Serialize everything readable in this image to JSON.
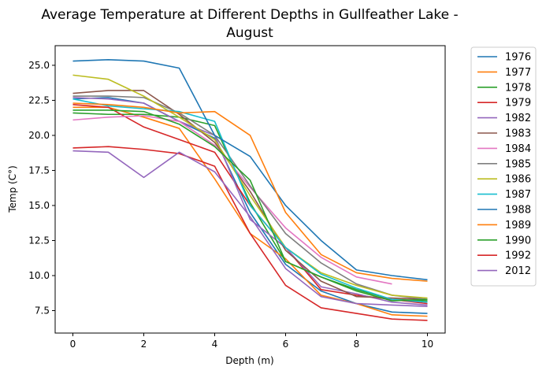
{
  "chart_data": {
    "type": "line",
    "title_lines": [
      "Average Temperature at Different Depths in Gullfeather Lake -",
      "August"
    ],
    "xlabel": "Depth (m)",
    "ylabel": "Temp (C°)",
    "xlim": [
      -0.5,
      10.5
    ],
    "ylim": [
      5.9,
      26.4
    ],
    "xticks": [
      0,
      2,
      4,
      6,
      8,
      10
    ],
    "yticks": [
      7.5,
      10.0,
      12.5,
      15.0,
      17.5,
      20.0,
      22.5,
      25.0
    ],
    "ytick_labels": [
      "7.5",
      "10.0",
      "12.5",
      "15.0",
      "17.5",
      "20.0",
      "22.5",
      "25.0"
    ],
    "grid": false,
    "legend_position": "outside-right",
    "series": [
      {
        "name": "1976",
        "color": "#1f77b4",
        "x": [
          0,
          1,
          2,
          3,
          4,
          5,
          6,
          7,
          8,
          9,
          10
        ],
        "values": [
          22.6,
          22.7,
          22.3,
          21.0,
          19.8,
          14.5,
          10.8,
          8.9,
          8.0,
          7.4,
          7.3
        ]
      },
      {
        "name": "1977",
        "color": "#ff7f0e",
        "x": [
          0,
          1,
          2,
          3,
          4,
          5,
          6,
          7,
          8,
          9,
          10
        ],
        "values": [
          22.0,
          22.0,
          21.3,
          20.5,
          16.9,
          13.0,
          11.2,
          8.6,
          8.0,
          7.2,
          7.1
        ]
      },
      {
        "name": "1978",
        "color": "#2ca02c",
        "x": [
          0,
          1,
          2,
          3,
          4,
          5,
          6,
          7,
          8,
          9,
          10
        ],
        "values": [
          21.6,
          21.5,
          21.5,
          21.3,
          20.7,
          15.2,
          11.0,
          9.9,
          9.0,
          8.3,
          8.2
        ]
      },
      {
        "name": "1979",
        "color": "#d62728",
        "x": [
          0,
          1,
          2,
          3,
          4,
          5,
          6,
          7,
          8,
          9,
          10
        ],
        "values": [
          22.2,
          22.0,
          20.6,
          19.7,
          18.8,
          15.0,
          12.0,
          9.0,
          8.6,
          8.3,
          8.0
        ]
      },
      {
        "name": "1982",
        "color": "#9467bd",
        "x": [
          0,
          1,
          2,
          3,
          4,
          5,
          6,
          7,
          8,
          9,
          10
        ],
        "values": [
          22.7,
          22.6,
          22.3,
          21.0,
          20.0,
          14.0,
          12.0,
          9.2,
          8.7,
          8.1,
          7.9
        ]
      },
      {
        "name": "1983",
        "color": "#8c564b",
        "x": [
          0,
          1,
          2,
          3,
          4,
          5,
          6,
          7,
          8,
          9,
          10
        ],
        "values": [
          23.0,
          23.2,
          23.2,
          21.5,
          19.5,
          16.0,
          11.8,
          9.6,
          8.5,
          8.4,
          8.3
        ]
      },
      {
        "name": "1984",
        "color": "#e377c2",
        "x": [
          0,
          1,
          2,
          3,
          4,
          5,
          6,
          7,
          8,
          9
        ],
        "values": [
          21.1,
          21.3,
          21.4,
          21.0,
          19.3,
          16.3,
          13.4,
          11.3,
          9.9,
          9.4
        ]
      },
      {
        "name": "1985",
        "color": "#7f7f7f",
        "x": [
          0,
          1,
          2,
          3,
          4,
          5,
          6,
          7,
          8,
          9,
          10
        ],
        "values": [
          22.8,
          22.8,
          22.7,
          21.6,
          20.0,
          16.4,
          13.0,
          10.9,
          9.4,
          8.6,
          8.3
        ]
      },
      {
        "name": "1986",
        "color": "#bcbd22",
        "x": [
          0,
          1,
          2,
          3,
          4,
          5,
          6,
          7,
          8,
          9,
          10
        ],
        "values": [
          24.3,
          24.0,
          22.8,
          21.3,
          19.7,
          15.7,
          12.0,
          10.2,
          9.3,
          8.6,
          8.4
        ]
      },
      {
        "name": "1987",
        "color": "#17becf",
        "x": [
          0,
          1,
          2,
          3,
          4,
          5,
          6,
          7,
          8,
          9,
          10
        ],
        "values": [
          22.6,
          22.1,
          21.9,
          21.7,
          21.0,
          15.0,
          12.0,
          10.1,
          9.1,
          8.3,
          8.1
        ]
      },
      {
        "name": "1988",
        "color": "#1f77b4",
        "x": [
          0,
          1,
          2,
          3,
          4,
          5,
          6,
          7,
          8,
          9,
          10
        ],
        "values": [
          25.3,
          25.4,
          25.3,
          24.8,
          20.0,
          18.5,
          15.0,
          12.5,
          10.4,
          10.0,
          9.7
        ]
      },
      {
        "name": "1989",
        "color": "#ff7f0e",
        "x": [
          0,
          1,
          2,
          3,
          4,
          5,
          6,
          7,
          8,
          9,
          10
        ],
        "values": [
          22.3,
          22.2,
          22.0,
          21.6,
          21.7,
          20.0,
          14.5,
          11.5,
          10.2,
          9.8,
          9.6
        ]
      },
      {
        "name": "1990",
        "color": "#2ca02c",
        "x": [
          0,
          1,
          2,
          3,
          4,
          5,
          6,
          7,
          8,
          9,
          10
        ],
        "values": [
          21.8,
          21.8,
          21.7,
          20.8,
          19.2,
          16.8,
          11.0,
          9.9,
          8.9,
          8.2,
          8.3
        ]
      },
      {
        "name": "1992",
        "color": "#d62728",
        "x": [
          0,
          1,
          2,
          3,
          4,
          5,
          6,
          7,
          8,
          9,
          10
        ],
        "values": [
          19.1,
          19.2,
          19.0,
          18.7,
          17.8,
          13.0,
          9.3,
          7.7,
          7.3,
          6.9,
          6.8
        ]
      },
      {
        "name": "2012",
        "color": "#9467bd",
        "x": [
          0,
          1,
          2,
          3,
          4,
          5,
          6,
          7,
          8,
          9,
          10
        ],
        "values": [
          18.9,
          18.8,
          17.0,
          18.8,
          17.4,
          14.2,
          10.5,
          8.5,
          8.0,
          7.9,
          7.8
        ]
      }
    ]
  }
}
